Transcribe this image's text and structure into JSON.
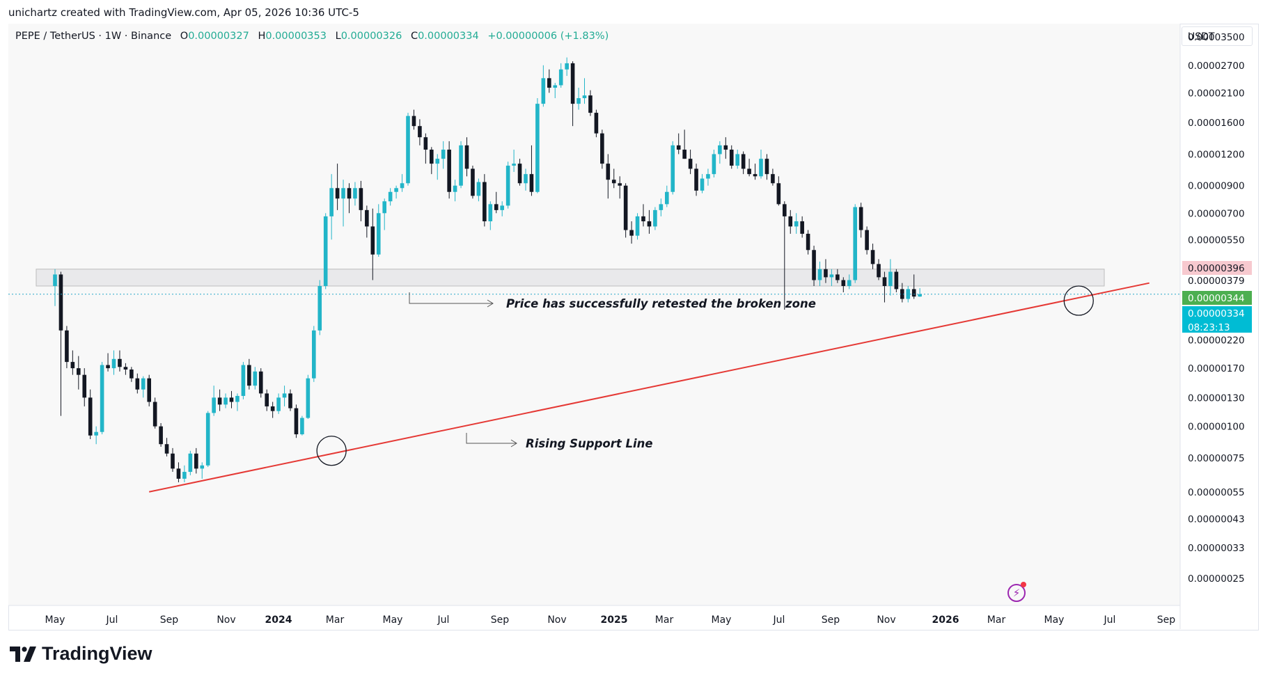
{
  "header": {
    "credit": "unichartz created with TradingView.com, Apr 05, 2026 10:36 UTC-5"
  },
  "legend": {
    "symbol": "PEPE / TetherUS · 1W · Binance",
    "open_label": "O",
    "open": "0.00000327",
    "high_label": "H",
    "high": "0.00000353",
    "low_label": "L",
    "low": "0.00000326",
    "close_label": "C",
    "close": "0.00000334",
    "change": "+0.00000006 (+1.83%)"
  },
  "price_scale": {
    "currency": "USDT",
    "labels": [
      "0.00003500",
      "0.00002700",
      "0.00002100",
      "0.00001600",
      "0.00001200",
      "0.00000900",
      "0.00000700",
      "0.00000550",
      "0.00000379",
      "0.00000220",
      "0.00000170",
      "0.00000130",
      "0.00000100",
      "0.00000075",
      "0.00000055",
      "0.00000043",
      "0.00000033",
      "0.00000025"
    ],
    "badges": [
      {
        "text": "0.00000396",
        "bg": "#f7c9cf",
        "fg": "#131722"
      },
      {
        "text": "0.00000344",
        "bg": "#4caf50",
        "fg": "#ffffff"
      },
      {
        "text": "0.00000334",
        "bg": "#00bcd4",
        "fg": "#ffffff"
      },
      {
        "text": "08:23:13",
        "bg": "#00bcd4",
        "fg": "#ffffff"
      }
    ]
  },
  "time_axis": {
    "labels": [
      {
        "text": "May",
        "bold": false
      },
      {
        "text": "Jul",
        "bold": false
      },
      {
        "text": "Sep",
        "bold": false
      },
      {
        "text": "Nov",
        "bold": false
      },
      {
        "text": "2024",
        "bold": true
      },
      {
        "text": "Mar",
        "bold": false
      },
      {
        "text": "May",
        "bold": false
      },
      {
        "text": "Jul",
        "bold": false
      },
      {
        "text": "Sep",
        "bold": false
      },
      {
        "text": "Nov",
        "bold": false
      },
      {
        "text": "2025",
        "bold": true
      },
      {
        "text": "Mar",
        "bold": false
      },
      {
        "text": "May",
        "bold": false
      },
      {
        "text": "Jul",
        "bold": false
      },
      {
        "text": "Sep",
        "bold": false
      },
      {
        "text": "Nov",
        "bold": false
      },
      {
        "text": "2026",
        "bold": true
      },
      {
        "text": "Mar",
        "bold": false
      },
      {
        "text": "May",
        "bold": false
      },
      {
        "text": "Jul",
        "bold": false
      },
      {
        "text": "Sep",
        "bold": false
      }
    ]
  },
  "annotations": {
    "retest": "Price has successfully retested the broken zone",
    "support": "Rising Support Line"
  },
  "brand": {
    "name": "TradingView"
  },
  "colors": {
    "up": "#22b5c8",
    "down": "#131722",
    "support_line": "#e53935",
    "zone_fill": "#e9e9eb",
    "dotted_line": "#26a5c8"
  },
  "chart_data": {
    "type": "candlestick",
    "title": "PEPE / TetherUS · 1W · Binance",
    "ylabel": "USDT",
    "y_scale": "log",
    "ylim": [
      2e-07,
      3.8e-05
    ],
    "x_start": "2023-05-01",
    "interval": "1W",
    "ohlc": [
      [
        3.6e-06,
        4.2e-06,
        3e-06,
        4e-06
      ],
      [
        4e-06,
        4.1e-06,
        1.1e-06,
        2.4e-06
      ],
      [
        2.4e-06,
        2.5e-06,
        1.7e-06,
        1.8e-06
      ],
      [
        1.8e-06,
        2e-06,
        1.6e-06,
        1.7e-06
      ],
      [
        1.7e-06,
        1.9e-06,
        1.4e-06,
        1.6e-06
      ],
      [
        1.6e-06,
        1.7e-06,
        1.2e-06,
        1.3e-06
      ],
      [
        1.3e-06,
        1.4e-06,
        8.9e-07,
        9.2e-07
      ],
      [
        9.2e-07,
        1e-06,
        8.5e-07,
        9.5e-07
      ],
      [
        9.5e-07,
        1.8e-06,
        9.3e-07,
        1.75e-06
      ],
      [
        1.75e-06,
        1.95e-06,
        1.65e-06,
        1.7e-06
      ],
      [
        1.7e-06,
        2e-06,
        1.6e-06,
        1.85e-06
      ],
      [
        1.85e-06,
        2e-06,
        1.65e-06,
        1.72e-06
      ],
      [
        1.72e-06,
        1.78e-06,
        1.6e-06,
        1.68e-06
      ],
      [
        1.68e-06,
        1.72e-06,
        1.5e-06,
        1.55e-06
      ],
      [
        1.55e-06,
        1.62e-06,
        1.35e-06,
        1.4e-06
      ],
      [
        1.4e-06,
        1.58e-06,
        1.3e-06,
        1.55e-06
      ],
      [
        1.55e-06,
        1.6e-06,
        1.2e-06,
        1.25e-06
      ],
      [
        1.25e-06,
        1.3e-06,
        9.8e-07,
        1e-06
      ],
      [
        1e-06,
        1.03e-06,
        8.3e-07,
        8.5e-07
      ],
      [
        8.5e-07,
        9e-07,
        7.6e-07,
        7.8e-07
      ],
      [
        7.8e-07,
        8.2e-07,
        6.6e-07,
        6.8e-07
      ],
      [
        6.8e-07,
        7.2e-07,
        6e-07,
        6.2e-07
      ],
      [
        6.2e-07,
        7e-07,
        6e-07,
        6.6e-07
      ],
      [
        6.6e-07,
        8e-07,
        6.4e-07,
        7.8e-07
      ],
      [
        7.8e-07,
        8.2e-07,
        6.5e-07,
        6.8e-07
      ],
      [
        6.8e-07,
        7.2e-07,
        6.2e-07,
        7e-07
      ],
      [
        7e-07,
        1.15e-06,
        6.9e-07,
        1.13e-06
      ],
      [
        1.13e-06,
        1.45e-06,
        1.1e-06,
        1.3e-06
      ],
      [
        1.3e-06,
        1.4e-06,
        1.15e-06,
        1.22e-06
      ],
      [
        1.22e-06,
        1.35e-06,
        1.18e-06,
        1.3e-06
      ],
      [
        1.3e-06,
        1.38e-06,
        1.18e-06,
        1.25e-06
      ],
      [
        1.25e-06,
        1.35e-06,
        1.15e-06,
        1.32e-06
      ],
      [
        1.32e-06,
        1.8e-06,
        1.28e-06,
        1.75e-06
      ],
      [
        1.75e-06,
        1.85e-06,
        1.4e-06,
        1.45e-06
      ],
      [
        1.45e-06,
        1.72e-06,
        1.4e-06,
        1.65e-06
      ],
      [
        1.65e-06,
        1.7e-06,
        1.3e-06,
        1.35e-06
      ],
      [
        1.35e-06,
        1.4e-06,
        1.15e-06,
        1.2e-06
      ],
      [
        1.2e-06,
        1.25e-06,
        1.08e-06,
        1.15e-06
      ],
      [
        1.15e-06,
        1.35e-06,
        1.12e-06,
        1.3e-06
      ],
      [
        1.3e-06,
        1.45e-06,
        1.2e-06,
        1.35e-06
      ],
      [
        1.35e-06,
        1.4e-06,
        1.15e-06,
        1.18e-06
      ],
      [
        1.18e-06,
        1.22e-06,
        9e-07,
        9.3e-07
      ],
      [
        9.3e-07,
        1.1e-06,
        9.2e-07,
        1.08e-06
      ],
      [
        1.08e-06,
        1.6e-06,
        1.07e-06,
        1.55e-06
      ],
      [
        1.55e-06,
        2.5e-06,
        1.5e-06,
        2.4e-06
      ],
      [
        2.4e-06,
        3.8e-06,
        2.3e-06,
        3.6e-06
      ],
      [
        3.6e-06,
        7e-06,
        3.5e-06,
        6.8e-06
      ],
      [
        6.8e-06,
        1e-05,
        5.5e-06,
        8.8e-06
      ],
      [
        8.8e-06,
        1.1e-05,
        7.2e-06,
        8e-06
      ],
      [
        8e-06,
        9.5e-06,
        6.2e-06,
        8.8e-06
      ],
      [
        8.8e-06,
        9.2e-06,
        7e-06,
        8e-06
      ],
      [
        8e-06,
        9.3e-06,
        7.5e-06,
        8.8e-06
      ],
      [
        8.8e-06,
        9.4e-06,
        6.5e-06,
        7.2e-06
      ],
      [
        7.2e-06,
        7.5e-06,
        5.6e-06,
        6.2e-06
      ],
      [
        6.2e-06,
        7.3e-06,
        3.8e-06,
        4.8e-06
      ],
      [
        4.8e-06,
        7.6e-06,
        4.7e-06,
        7e-06
      ],
      [
        7e-06,
        8e-06,
        6e-06,
        7.8e-06
      ],
      [
        7.8e-06,
        8.8e-06,
        7.5e-06,
        8.5e-06
      ],
      [
        8.5e-06,
        9e-06,
        8e-06,
        8.8e-06
      ],
      [
        8.8e-06,
        1e-05,
        8.5e-06,
        9.2e-06
      ],
      [
        9.2e-06,
        1.75e-05,
        9e-06,
        1.7e-05
      ],
      [
        1.7e-05,
        1.8e-05,
        1.5e-05,
        1.55e-05
      ],
      [
        1.55e-05,
        1.65e-05,
        1.3e-05,
        1.4e-05
      ],
      [
        1.4e-05,
        1.45e-05,
        1.1e-05,
        1.25e-05
      ],
      [
        1.25e-05,
        1.28e-05,
        1e-05,
        1.1e-05
      ],
      [
        1.1e-05,
        1.2e-05,
        9.5e-06,
        1.15e-05
      ],
      [
        1.15e-05,
        1.35e-05,
        1.05e-05,
        1.25e-05
      ],
      [
        1.25e-05,
        1.35e-05,
        8e-06,
        8.5e-06
      ],
      [
        8.5e-06,
        9.5e-06,
        7.8e-06,
        9e-06
      ],
      [
        9e-06,
        1.35e-05,
        8.8e-06,
        1.3e-05
      ],
      [
        1.3e-05,
        1.4e-05,
        9.8e-06,
        1.05e-05
      ],
      [
        1.05e-05,
        1.08e-05,
        8e-06,
        8.2e-06
      ],
      [
        8.2e-06,
        9.6e-06,
        7.8e-06,
        9.3e-06
      ],
      [
        9.3e-06,
        1e-05,
        6.2e-06,
        6.5e-06
      ],
      [
        6.5e-06,
        7.8e-06,
        6e-06,
        7.6e-06
      ],
      [
        7.6e-06,
        8.5e-06,
        7e-06,
        7.2e-06
      ],
      [
        7.2e-06,
        7.8e-06,
        6.8e-06,
        7.5e-06
      ],
      [
        7.5e-06,
        1.12e-05,
        7.3e-06,
        1.08e-05
      ],
      [
        1.08e-05,
        1.25e-05,
        1.02e-05,
        1.1e-05
      ],
      [
        1.1e-05,
        1.15e-05,
        9e-06,
        9.2e-06
      ],
      [
        9.2e-06,
        1.05e-05,
        8.6e-06,
        1e-05
      ],
      [
        1e-05,
        1.3e-05,
        8.2e-06,
        8.5e-06
      ],
      [
        8.5e-06,
        2e-05,
        8.4e-06,
        1.9e-05
      ],
      [
        1.9e-05,
        2.7e-05,
        1.85e-05,
        2.4e-05
      ],
      [
        2.4e-05,
        2.6e-05,
        2.1e-05,
        2.2e-05
      ],
      [
        2.2e-05,
        2.3e-05,
        2e-05,
        2.25e-05
      ],
      [
        2.25e-05,
        2.75e-05,
        2.2e-05,
        2.6e-05
      ],
      [
        2.6e-05,
        2.9e-05,
        2.45e-05,
        2.75e-05
      ],
      [
        2.75e-05,
        2.8e-05,
        1.55e-05,
        1.9e-05
      ],
      [
        1.9e-05,
        2.2e-05,
        1.8e-05,
        2e-05
      ],
      [
        2e-05,
        2.4e-05,
        1.9e-05,
        2.05e-05
      ],
      [
        2.05e-05,
        2.15e-05,
        1.7e-05,
        1.75e-05
      ],
      [
        1.75e-05,
        1.8e-05,
        1.4e-05,
        1.45e-05
      ],
      [
        1.45e-05,
        1.5e-05,
        1.05e-05,
        1.1e-05
      ],
      [
        1.1e-05,
        1.2e-05,
        8e-06,
        9.5e-06
      ],
      [
        9.5e-06,
        1.05e-05,
        8.8e-06,
        9.2e-06
      ],
      [
        9.2e-06,
        9.8e-06,
        8e-06,
        9e-06
      ],
      [
        9e-06,
        9.2e-06,
        5.6e-06,
        6e-06
      ],
      [
        6e-06,
        6.5e-06,
        5.3e-06,
        5.7e-06
      ],
      [
        5.7e-06,
        7e-06,
        5.5e-06,
        6.8e-06
      ],
      [
        6.8e-06,
        7.6e-06,
        6.2e-06,
        6.5e-06
      ],
      [
        6.5e-06,
        7.2e-06,
        5.8e-06,
        6.2e-06
      ],
      [
        6.2e-06,
        7.4e-06,
        6e-06,
        7.2e-06
      ],
      [
        7.2e-06,
        8e-06,
        6.8e-06,
        7.6e-06
      ],
      [
        7.6e-06,
        9e-06,
        7.4e-06,
        8.5e-06
      ],
      [
        8.5e-06,
        1.35e-05,
        8.3e-06,
        1.3e-05
      ],
      [
        1.3e-05,
        1.45e-05,
        1.2e-05,
        1.25e-05
      ],
      [
        1.25e-05,
        1.5e-05,
        1.15e-05,
        1.15e-05
      ],
      [
        1.15e-05,
        1.25e-05,
        1e-05,
        1.05e-05
      ],
      [
        1.05e-05,
        1.1e-05,
        8.2e-06,
        8.6e-06
      ],
      [
        8.6e-06,
        1e-05,
        8.4e-06,
        9.6e-06
      ],
      [
        9.6e-06,
        1.05e-05,
        9e-06,
        1e-05
      ],
      [
        1e-05,
        1.25e-05,
        9.7e-06,
        1.2e-05
      ],
      [
        1.2e-05,
        1.35e-05,
        1.1e-05,
        1.3e-05
      ],
      [
        1.3e-05,
        1.4e-05,
        1.15e-05,
        1.25e-05
      ],
      [
        1.25e-05,
        1.3e-05,
        1.05e-05,
        1.08e-05
      ],
      [
        1.08e-05,
        1.25e-05,
        1.05e-05,
        1.2e-05
      ],
      [
        1.2e-05,
        1.23e-05,
        1e-05,
        1.05e-05
      ],
      [
        1.05e-05,
        1.15e-05,
        9.8e-06,
        1e-05
      ],
      [
        1e-05,
        1.1e-05,
        9.5e-06,
        9.8e-06
      ],
      [
        9.8e-06,
        1.25e-05,
        9.6e-06,
        1.15e-05
      ],
      [
        1.15e-05,
        1.2e-05,
        9.5e-06,
        1e-05
      ],
      [
        1e-05,
        1.05e-05,
        9e-06,
        9.2e-06
      ],
      [
        9.2e-06,
        9.8e-06,
        7.5e-06,
        7.6e-06
      ],
      [
        7.6e-06,
        7.8e-06,
        2.9e-06,
        6.8e-06
      ],
      [
        6.8e-06,
        7.2e-06,
        5.8e-06,
        6.2e-06
      ],
      [
        6.2e-06,
        7e-06,
        5.8e-06,
        6.5e-06
      ],
      [
        6.5e-06,
        6.8e-06,
        5.6e-06,
        5.8e-06
      ],
      [
        5.8e-06,
        6e-06,
        4.8e-06,
        5e-06
      ],
      [
        5e-06,
        5.2e-06,
        3.6e-06,
        3.8e-06
      ],
      [
        3.8e-06,
        4.5e-06,
        3.6e-06,
        4.2e-06
      ],
      [
        4.2e-06,
        4.6e-06,
        3.7e-06,
        3.9e-06
      ],
      [
        3.9e-06,
        4.2e-06,
        3.6e-06,
        4e-06
      ],
      [
        4e-06,
        4.2e-06,
        3.7e-06,
        3.8e-06
      ],
      [
        3.8e-06,
        3.9e-06,
        3.4e-06,
        3.6e-06
      ],
      [
        3.6e-06,
        4e-06,
        3.5e-06,
        3.8e-06
      ],
      [
        3.8e-06,
        7.6e-06,
        3.7e-06,
        7.4e-06
      ],
      [
        7.4e-06,
        7.7e-06,
        5.6e-06,
        6e-06
      ],
      [
        6e-06,
        6.2e-06,
        4.8e-06,
        5e-06
      ],
      [
        5e-06,
        5.3e-06,
        4.2e-06,
        4.4e-06
      ],
      [
        4.4e-06,
        4.6e-06,
        3.8e-06,
        3.9e-06
      ],
      [
        3.9e-06,
        4.1e-06,
        3.1e-06,
        3.6e-06
      ],
      [
        3.6e-06,
        4.6e-06,
        3.3e-06,
        4.1e-06
      ],
      [
        4.1e-06,
        4.2e-06,
        3.4e-06,
        3.5e-06
      ],
      [
        3.5e-06,
        3.7e-06,
        3.1e-06,
        3.2e-06
      ],
      [
        3.2e-06,
        3.6e-06,
        3.1e-06,
        3.5e-06
      ],
      [
        3.5e-06,
        4e-06,
        3.2e-06,
        3.27e-06
      ],
      [
        3.27e-06,
        3.53e-06,
        3.26e-06,
        3.34e-06
      ]
    ],
    "resistance_zone": [
      3.6e-06,
      4.2e-06
    ],
    "support_line": {
      "from": {
        "index": 16,
        "price": 5.5e-07
      },
      "to": {
        "index": 186,
        "price": 3.7e-06
      }
    },
    "dotted_price": 3.34e-06,
    "circles": [
      {
        "index": 47,
        "price": 8e-07
      },
      {
        "index": 174,
        "price": 3.15e-06
      }
    ]
  }
}
